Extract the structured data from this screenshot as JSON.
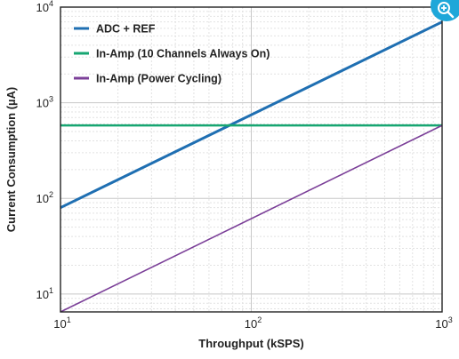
{
  "chart_data": {
    "type": "line",
    "title": "",
    "xlabel": "Throughput (kSPS)",
    "ylabel": "Current Consumption (µA)",
    "xscale": "log",
    "yscale": "log",
    "xlim": [
      10,
      1000
    ],
    "ylim": [
      6.5,
      10000
    ],
    "grid": true,
    "legend_position": "top-left",
    "x_ticks": [
      {
        "value": 10,
        "base": "10",
        "exp": "1"
      },
      {
        "value": 100,
        "base": "10",
        "exp": "2"
      },
      {
        "value": 1000,
        "base": "10",
        "exp": "3"
      }
    ],
    "y_ticks": [
      {
        "value": 10,
        "base": "10",
        "exp": "1"
      },
      {
        "value": 100,
        "base": "10",
        "exp": "2"
      },
      {
        "value": 1000,
        "base": "10",
        "exp": "3"
      },
      {
        "value": 10000,
        "base": "10",
        "exp": "4"
      }
    ],
    "series": [
      {
        "name": "ADC + REF",
        "color": "#1f6fb2",
        "width": 3,
        "x": [
          10,
          1000
        ],
        "y": [
          80,
          7000
        ]
      },
      {
        "name": "In-Amp (10 Channels Always On)",
        "color": "#17a672",
        "width": 2.5,
        "x": [
          10,
          1000
        ],
        "y": [
          580,
          580
        ]
      },
      {
        "name": "In-Amp (Power Cycling)",
        "color": "#7b3f98",
        "width": 1.6,
        "x": [
          10,
          1000
        ],
        "y": [
          6.5,
          580
        ]
      }
    ]
  },
  "toolbar": {
    "zoom_icon": "zoom-in-icon"
  }
}
